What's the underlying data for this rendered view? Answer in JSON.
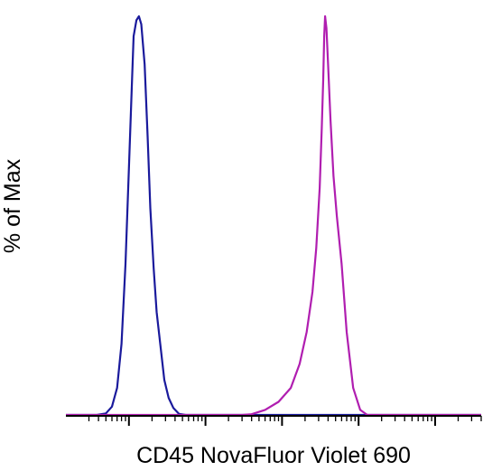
{
  "chart_data": {
    "type": "line",
    "title": "",
    "xlabel": "CD45 NovaFluor Violet 690",
    "ylabel": "% of Max",
    "xscale": "log",
    "x_decade_ticks": [
      1,
      10,
      100,
      1000,
      10000
    ],
    "xlim": [
      0.15,
      40000
    ],
    "ylim": [
      0,
      100
    ],
    "grid": false,
    "legend": "none",
    "series": [
      {
        "color": "#1a1a9c",
        "x": [
          0.38,
          0.5,
          0.6,
          0.7,
          0.8,
          0.9,
          1.0,
          1.1,
          1.15,
          1.25,
          1.35,
          1.45,
          1.6,
          1.75,
          1.9,
          2.1,
          2.3,
          2.6,
          2.9,
          3.3,
          3.8,
          4.5,
          5.5
        ],
        "y": [
          0,
          0.6,
          2.3,
          7,
          18,
          38,
          62,
          85,
          95,
          99,
          100,
          98,
          88,
          70,
          52,
          37,
          26,
          17,
          9,
          4.5,
          2,
          0.5,
          0
        ]
      },
      {
        "color": "#b01eb0",
        "x": [
          30,
          40,
          60,
          90,
          130,
          170,
          210,
          250,
          280,
          310,
          330,
          345,
          355,
          365,
          380,
          400,
          430,
          470,
          520,
          600,
          700,
          850,
          1050,
          1300
        ],
        "y": [
          0,
          0.4,
          1.5,
          3.5,
          7,
          13,
          21,
          31,
          42,
          57,
          72,
          84,
          95,
          100,
          97,
          88,
          74,
          60,
          50,
          38,
          21,
          7,
          1.5,
          0
        ]
      }
    ]
  }
}
